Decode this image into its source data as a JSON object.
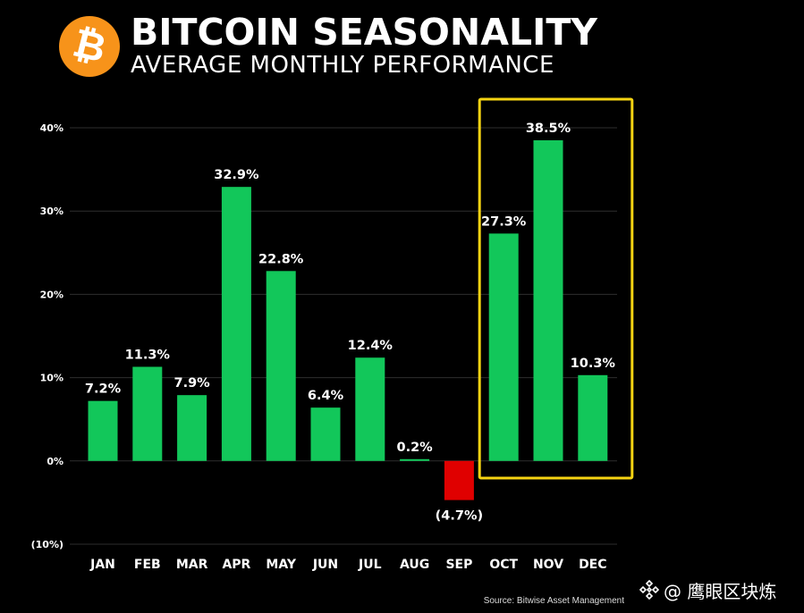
{
  "header": {
    "logo_icon": "bitcoin-logo-icon",
    "logo_glyph": "₿",
    "title": "BITCOIN SEASONALITY",
    "subtitle": "AVERAGE MONTHLY PERFORMANCE"
  },
  "chart_data": {
    "type": "bar",
    "categories": [
      "JAN",
      "FEB",
      "MAR",
      "APR",
      "MAY",
      "JUN",
      "JUL",
      "AUG",
      "SEP",
      "OCT",
      "NOV",
      "DEC"
    ],
    "values": [
      7.2,
      11.3,
      7.9,
      32.9,
      22.8,
      6.4,
      12.4,
      0.2,
      -4.7,
      27.3,
      38.5,
      10.3
    ],
    "value_labels": [
      "7.2%",
      "11.3%",
      "7.9%",
      "32.9%",
      "22.8%",
      "6.4%",
      "12.4%",
      "0.2%",
      "(4.7%)",
      "27.3%",
      "38.5%",
      "10.3%"
    ],
    "ylim": [
      -10,
      40
    ],
    "yticks": [
      40,
      30,
      20,
      10,
      0,
      -10
    ],
    "ytick_labels": [
      "40%",
      "30%",
      "20%",
      "10%",
      "0%",
      "(10%)"
    ],
    "grid": true,
    "colors": {
      "positive": "#12c75a",
      "negative": "#e00000",
      "highlight": "#f5d312",
      "grid": "#2e2e2e"
    },
    "highlight": {
      "categories": [
        "OCT",
        "NOV",
        "DEC"
      ]
    }
  },
  "footer": {
    "source": "Source: Bitwise Asset Management",
    "watermark_icon": "binance-diamond-icon",
    "watermark_text": "@ 鹰眼区块炼"
  }
}
